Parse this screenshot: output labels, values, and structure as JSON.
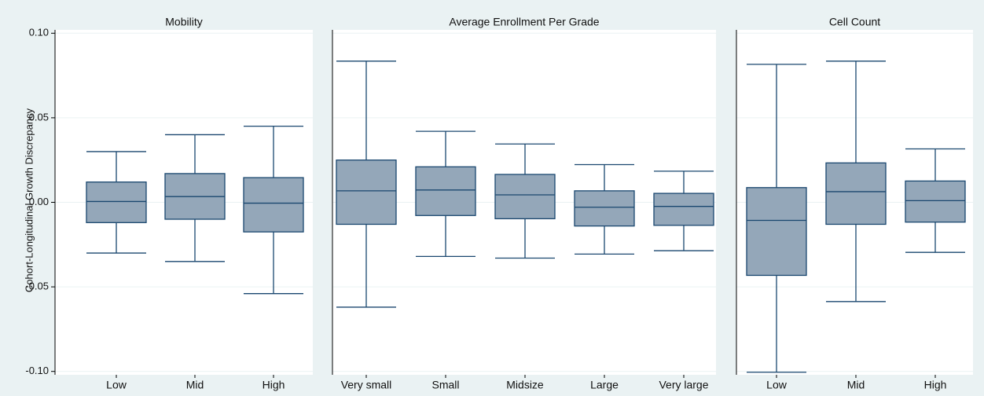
{
  "chart_data": [
    {
      "type": "box",
      "title": "Mobility",
      "ylabel": "Cohort-Longitudinal Growth Discrepancy",
      "ylim": [
        -0.102,
        0.102
      ],
      "yticks": [
        {
          "value": -0.1,
          "label": "-0.10"
        },
        {
          "value": -0.05,
          "label": "-0.05"
        },
        {
          "value": 0,
          "label": "0.00"
        },
        {
          "value": 0.05,
          "label": "0.05"
        },
        {
          "value": 0.1,
          "label": "0.10"
        }
      ],
      "grid": true,
      "color": "#94a7b9",
      "categories": [
        "Low",
        "Mid",
        "High"
      ],
      "boxes": [
        {
          "low": -0.03,
          "q1": -0.012,
          "median": 0.0005,
          "q3": 0.012,
          "high": 0.03
        },
        {
          "low": -0.035,
          "q1": -0.01,
          "median": 0.0034,
          "q3": 0.017,
          "high": 0.04
        },
        {
          "low": -0.054,
          "q1": -0.0175,
          "median": -0.0005,
          "q3": 0.0146,
          "high": 0.045
        }
      ]
    },
    {
      "type": "box",
      "title": "Average Enrollment Per Grade",
      "color": "#94a7b9",
      "categories": [
        "Very small",
        "Small",
        "Midsize",
        "Large",
        "Very large"
      ],
      "boxes": [
        {
          "low": -0.062,
          "q1": -0.013,
          "median": 0.0068,
          "q3": 0.025,
          "high": 0.0835
        },
        {
          "low": -0.032,
          "q1": -0.0078,
          "median": 0.0073,
          "q3": 0.021,
          "high": 0.042
        },
        {
          "low": -0.033,
          "q1": -0.0097,
          "median": 0.0044,
          "q3": 0.0165,
          "high": 0.0345
        },
        {
          "low": -0.0306,
          "q1": -0.014,
          "median": -0.0029,
          "q3": 0.0068,
          "high": 0.0223
        },
        {
          "low": -0.0286,
          "q1": -0.0136,
          "median": -0.0024,
          "q3": 0.0053,
          "high": 0.0184
        }
      ]
    },
    {
      "type": "box",
      "title": "Cell Count",
      "color": "#94a7b9",
      "categories": [
        "Low",
        "Mid",
        "High"
      ],
      "boxes": [
        {
          "low": -0.1005,
          "q1": -0.0432,
          "median": -0.0107,
          "q3": 0.0087,
          "high": 0.0816
        },
        {
          "low": -0.0587,
          "q1": -0.013,
          "median": 0.0063,
          "q3": 0.0233,
          "high": 0.0835
        },
        {
          "low": -0.0296,
          "q1": -0.0117,
          "median": 0.001,
          "q3": 0.0126,
          "high": 0.0316
        }
      ]
    }
  ]
}
